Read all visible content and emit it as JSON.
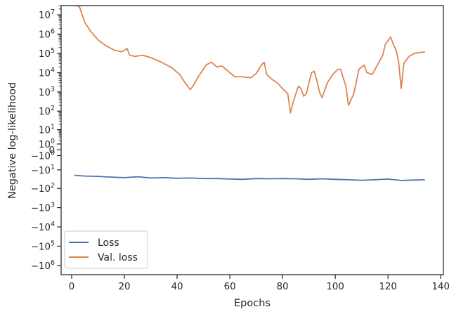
{
  "chart_data": {
    "type": "line",
    "xlabel": "Epochs",
    "ylabel": "Negative log-likelihood",
    "yscale": "symlog",
    "xlim": [
      -4,
      141
    ],
    "ylim": [
      -3000000,
      30000000
    ],
    "grid": false,
    "legend_position": "lower-left",
    "x_ticks": [
      0,
      20,
      40,
      60,
      80,
      100,
      120,
      140
    ],
    "y_ticks": [
      {
        "value": 10000000,
        "label": "10^7"
      },
      {
        "value": 1000000,
        "label": "10^6"
      },
      {
        "value": 100000,
        "label": "10^5"
      },
      {
        "value": 10000,
        "label": "10^4"
      },
      {
        "value": 1000,
        "label": "10^3"
      },
      {
        "value": 100,
        "label": "10^2"
      },
      {
        "value": 10,
        "label": "10^1"
      },
      {
        "value": 1,
        "label": "10^0"
      },
      {
        "value": 0,
        "label": "0"
      },
      {
        "value": -1,
        "label": "−10^0"
      },
      {
        "value": -10,
        "label": "−10^1"
      },
      {
        "value": -100,
        "label": "−10^2"
      },
      {
        "value": -1000,
        "label": "−10^3"
      },
      {
        "value": -10000,
        "label": "−10^4"
      },
      {
        "value": -100000,
        "label": "−10^5"
      },
      {
        "value": -1000000,
        "label": "−10^6"
      }
    ],
    "series": [
      {
        "name": "Loss",
        "color": "#4c72b0",
        "x": [
          1,
          3,
          5,
          10,
          15,
          20,
          25,
          30,
          35,
          40,
          45,
          50,
          55,
          60,
          65,
          70,
          75,
          80,
          85,
          90,
          95,
          100,
          105,
          110,
          115,
          120,
          125,
          130,
          134
        ],
        "y": [
          -20,
          -21,
          -22,
          -23,
          -25,
          -27,
          -24,
          -28,
          -27,
          -29,
          -28,
          -30,
          -30,
          -32,
          -33,
          -30,
          -31,
          -30,
          -31,
          -33,
          -31,
          -33,
          -35,
          -37,
          -35,
          -32,
          -38,
          -36,
          -35
        ]
      },
      {
        "name": "Val. loss",
        "color": "#dd8452",
        "x": [
          1,
          2,
          3,
          4,
          5,
          7,
          10,
          13,
          16,
          19,
          21,
          22,
          24,
          27,
          30,
          34,
          38,
          41,
          43,
          45,
          46,
          48,
          51,
          53,
          55,
          57,
          60,
          62,
          64,
          66,
          68,
          70,
          72,
          73,
          74,
          76,
          78,
          80,
          82,
          83,
          84,
          86,
          87,
          88,
          89,
          90,
          91,
          92,
          93,
          94,
          95,
          97,
          99,
          101,
          102,
          104,
          105,
          107,
          109,
          111,
          112,
          114,
          116,
          118,
          119,
          121,
          122,
          123,
          124,
          125,
          126,
          128,
          130,
          132,
          134
        ],
        "y": [
          30000000,
          30000000,
          25000000,
          10000000,
          4000000,
          1500000,
          500000,
          250000,
          150000,
          120000,
          180000,
          80000,
          70000,
          80000,
          60000,
          35000,
          18000,
          8000,
          3000,
          1300,
          2000,
          6000,
          25000,
          35000,
          20000,
          22000,
          10000,
          6000,
          6200,
          5800,
          5500,
          9000,
          25000,
          35000,
          8000,
          4500,
          3000,
          1500,
          800,
          80,
          300,
          2000,
          1500,
          600,
          800,
          3000,
          10000,
          12000,
          4000,
          1000,
          500,
          3000,
          8000,
          15000,
          15000,
          2000,
          200,
          800,
          15000,
          25000,
          10000,
          8000,
          25000,
          80000,
          300000,
          700000,
          300000,
          150000,
          40000,
          1500,
          30000,
          70000,
          100000,
          110000,
          120000
        ]
      }
    ]
  }
}
